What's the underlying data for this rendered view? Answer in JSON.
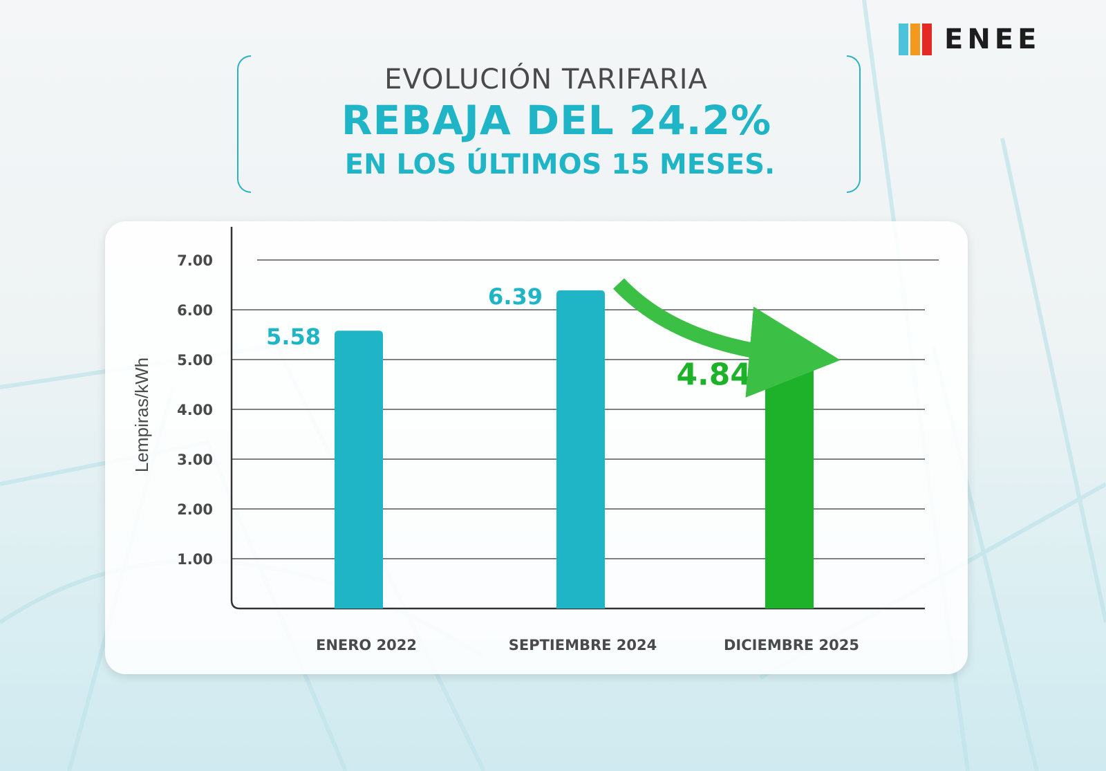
{
  "brand": {
    "name": "ENEE"
  },
  "header": {
    "line1": "EVOLUCIÓN TARIFARIA",
    "line2": "REBAJA DEL 24.2%",
    "line3": "EN LOS ÚLTIMOS 15 MESES."
  },
  "colors": {
    "teal": "#20b5c6",
    "green": "#1eb22b",
    "arrow": "#3cbf45",
    "text": "#4a4a4a"
  },
  "chart_data": {
    "type": "bar",
    "title": "EVOLUCIÓN TARIFARIA",
    "xlabel": "",
    "ylabel": "Lempiras/kWh",
    "ylim": [
      0,
      7
    ],
    "yticks": [
      "1.00",
      "2.00",
      "3.00",
      "4.00",
      "5.00",
      "6.00",
      "7.00"
    ],
    "categories": [
      "ENERO 2022",
      "SEPTIEMBRE 2024",
      "DICIEMBRE 2025"
    ],
    "values": [
      5.58,
      6.39,
      4.84
    ],
    "labels": [
      "5.58",
      "6.39",
      "4.84"
    ],
    "bar_colors": [
      "#20b5c6",
      "#20b5c6",
      "#1eb22b"
    ],
    "grid": true,
    "annotations": [
      "downward arrow from SEPTIEMBRE 2024 to DICIEMBRE 2025"
    ]
  }
}
